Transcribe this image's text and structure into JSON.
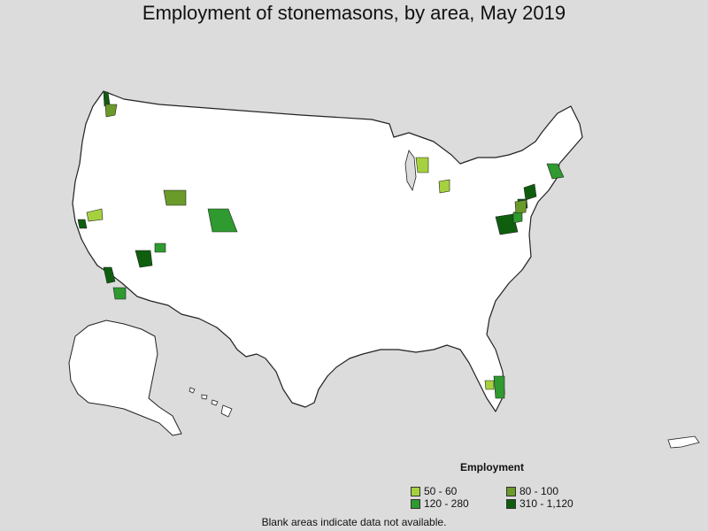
{
  "title": "Employment of stonemasons, by area, May 2019",
  "legend": {
    "title": "Employment",
    "items": [
      {
        "label": "50 - 60",
        "color": "#a6d13f"
      },
      {
        "label": "80 - 100",
        "color": "#6a9a2a"
      },
      {
        "label": "120 - 280",
        "color": "#2f9a2f"
      },
      {
        "label": "310 - 1,120",
        "color": "#0e5e0e"
      }
    ]
  },
  "footnote": "Blank areas indicate data not available."
}
